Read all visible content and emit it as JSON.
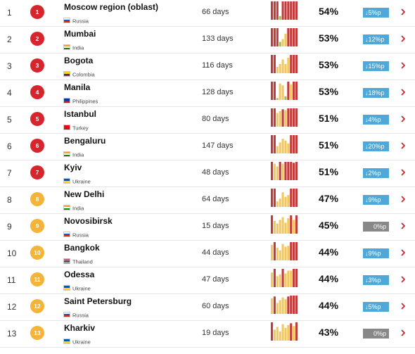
{
  "colors": {
    "badge_red": "#d6252d",
    "badge_orange": "#f4b339",
    "bar_red": "#c23b3b",
    "bar_yellow": "#f2c75c",
    "bar_green": "#9cc24a",
    "change_blue": "#4fa8d7",
    "change_gray": "#888888",
    "chevron_red": "#d6252d"
  },
  "rows": [
    {
      "rank": "1",
      "city": "Moscow region (oblast)",
      "country": "Russia",
      "flag": "russia-flag-icon",
      "days": "66 days",
      "pct": "54%",
      "change": "↓5%p",
      "trend": "down",
      "badge": "red",
      "spark": [
        1,
        1,
        1,
        0.2,
        1,
        1,
        1,
        1,
        1,
        1
      ]
    },
    {
      "rank": "2",
      "city": "Mumbai",
      "country": "India",
      "flag": "india-flag-icon",
      "days": "133 days",
      "pct": "53%",
      "change": "↓12%p",
      "trend": "down",
      "badge": "red",
      "spark": [
        1,
        1,
        1,
        0.25,
        0.4,
        0.7,
        1,
        1,
        1,
        1
      ]
    },
    {
      "rank": "3",
      "city": "Bogota",
      "country": "Colombia",
      "flag": "colombia-flag-icon",
      "days": "116 days",
      "pct": "53%",
      "change": "↓15%p",
      "trend": "down",
      "badge": "red",
      "spark": [
        1,
        1,
        0.35,
        0.5,
        0.75,
        0.5,
        0.85,
        1,
        1,
        1
      ]
    },
    {
      "rank": "4",
      "city": "Manila",
      "country": "Philippines",
      "flag": "philippines-flag-icon",
      "days": "128 days",
      "pct": "53%",
      "change": "↓18%p",
      "trend": "down",
      "badge": "red",
      "spark": [
        1,
        1,
        0.1,
        0.9,
        0.8,
        0.2,
        1,
        0.85,
        1,
        1
      ]
    },
    {
      "rank": "5",
      "city": "Istanbul",
      "country": "Turkey",
      "flag": "turkey-flag-icon",
      "days": "80 days",
      "pct": "51%",
      "change": "↓4%p",
      "trend": "down",
      "badge": "red",
      "spark": [
        1,
        1,
        0.75,
        0.85,
        0.95,
        0.9,
        1,
        1,
        1,
        1
      ]
    },
    {
      "rank": "6",
      "city": "Bengaluru",
      "country": "India",
      "flag": "india-flag-icon",
      "days": "147 days",
      "pct": "51%",
      "change": "↓20%p",
      "trend": "down",
      "badge": "red",
      "spark": [
        1,
        1,
        0.4,
        0.6,
        0.8,
        0.7,
        0.55,
        1,
        1,
        1
      ]
    },
    {
      "rank": "7",
      "city": "Kyiv",
      "country": "Ukraine",
      "flag": "ukraine-flag-icon",
      "days": "48 days",
      "pct": "51%",
      "change": "↓2%p",
      "trend": "down",
      "badge": "red",
      "spark": [
        1,
        0.9,
        0.75,
        1,
        0.9,
        1,
        1,
        1,
        0.95,
        1
      ]
    },
    {
      "rank": "8",
      "city": "New Delhi",
      "country": "India",
      "flag": "india-flag-icon",
      "days": "64 days",
      "pct": "47%",
      "change": "↓9%p",
      "trend": "down",
      "badge": "orange",
      "spark": [
        1,
        1,
        0.3,
        0.45,
        0.8,
        0.55,
        0.65,
        1,
        1,
        1
      ]
    },
    {
      "rank": "9",
      "city": "Novosibirsk",
      "country": "Russia",
      "flag": "russia-flag-icon",
      "days": "15 days",
      "pct": "45%",
      "change": "0%p",
      "trend": "flat",
      "badge": "orange",
      "spark": [
        1,
        0.7,
        0.55,
        0.75,
        0.9,
        0.6,
        0.85,
        1,
        0.75,
        1
      ]
    },
    {
      "rank": "10",
      "city": "Bangkok",
      "country": "Thailand",
      "flag": "thailand-flag-icon",
      "days": "44 days",
      "pct": "44%",
      "change": "↓9%p",
      "trend": "down",
      "badge": "orange",
      "spark": [
        0.85,
        1,
        0.7,
        0.55,
        0.9,
        0.75,
        0.8,
        1,
        1,
        1
      ]
    },
    {
      "rank": "11",
      "city": "Odessa",
      "country": "Ukraine",
      "flag": "ukraine-flag-icon",
      "days": "47 days",
      "pct": "44%",
      "change": "↓3%p",
      "trend": "down",
      "badge": "orange",
      "spark": [
        0.8,
        1,
        0.6,
        0.7,
        1,
        0.75,
        0.9,
        0.9,
        1,
        1
      ]
    },
    {
      "rank": "12",
      "city": "Saint Petersburg",
      "country": "Russia",
      "flag": "russia-flag-icon",
      "days": "60 days",
      "pct": "44%",
      "change": "↓5%p",
      "trend": "down",
      "badge": "orange",
      "spark": [
        0.85,
        0.95,
        0.6,
        0.75,
        0.9,
        0.8,
        0.95,
        1,
        1,
        1
      ]
    },
    {
      "rank": "13",
      "city": "Kharkiv",
      "country": "Ukraine",
      "flag": "ukraine-flag-icon",
      "days": "19 days",
      "pct": "43%",
      "change": "0%p",
      "trend": "flat",
      "badge": "orange",
      "spark": [
        1,
        0.6,
        0.75,
        0.5,
        0.9,
        0.7,
        0.85,
        0.95,
        0.8,
        1
      ]
    }
  ]
}
